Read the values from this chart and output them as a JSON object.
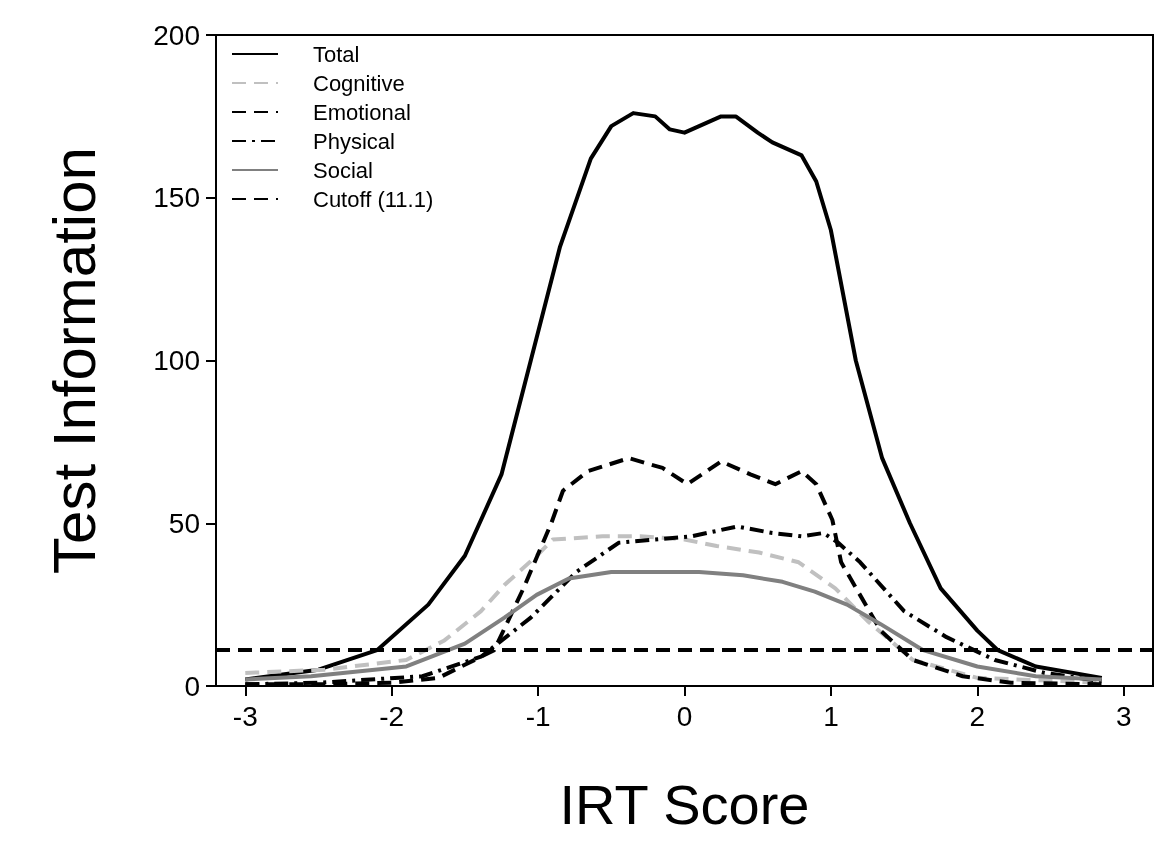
{
  "chart_data": {
    "type": "line",
    "xlabel": "IRT Score",
    "ylabel": "Test Information",
    "xlim": [
      -3.2,
      3.2
    ],
    "xticks": [
      -3,
      -2,
      -1,
      0,
      1,
      2,
      3
    ],
    "ylim": [
      0,
      200
    ],
    "yticks": [
      0,
      50,
      100,
      150,
      200
    ],
    "grid": false,
    "legend": "top left",
    "marker": "none",
    "series": [
      {
        "name": "Total",
        "color": "#000000",
        "line_style": "solid",
        "x": [
          -3,
          -2.5,
          -2.1,
          -1.75,
          -1.5,
          -1.25,
          -1.05,
          -0.85,
          -0.64,
          -0.5,
          -0.35,
          -0.2,
          -0.1,
          0,
          0.1,
          0.25,
          0.35,
          0.5,
          0.6,
          0.8,
          0.9,
          1,
          1.17,
          1.35,
          1.54,
          1.75,
          2,
          2.14,
          2.4,
          2.85
        ],
        "values": [
          2,
          5,
          11,
          25,
          40,
          65,
          100,
          135,
          162,
          172,
          176,
          175,
          171,
          170,
          172,
          175,
          175,
          170,
          167,
          163,
          155,
          140,
          100,
          70,
          50,
          30,
          17,
          11,
          6,
          2.5
        ]
      },
      {
        "name": "Cognitive",
        "color": "#c0c0c0",
        "line_style": "dashed",
        "x": [
          -3,
          -2.46,
          -1.9,
          -1.64,
          -1.39,
          -1.23,
          -1.01,
          -0.9,
          -0.56,
          -0.3,
          0,
          0.22,
          0.51,
          0.78,
          1.03,
          1.25,
          1.56,
          2,
          2.85
        ],
        "values": [
          4,
          5,
          8,
          14,
          23,
          31,
          40,
          45,
          46,
          46,
          45,
          43,
          41,
          38,
          30,
          20,
          8,
          2.5,
          1
        ]
      },
      {
        "name": "Emotional",
        "color": "#000000",
        "line_style": "dashed",
        "x": [
          -3,
          -2.5,
          -2,
          -1.68,
          -1.3,
          -1.1,
          -0.91,
          -0.83,
          -0.66,
          -0.38,
          -0.15,
          0.02,
          0.25,
          0.45,
          0.62,
          0.8,
          0.9,
          1.01,
          1.07,
          1.34,
          1.56,
          1.9,
          2.23,
          2.85
        ],
        "values": [
          0.5,
          0.5,
          1,
          2.5,
          11,
          30,
          50,
          60,
          66,
          70,
          67,
          62,
          69,
          65,
          62,
          66,
          62,
          51,
          38,
          17,
          8,
          3,
          1,
          0.5
        ]
      },
      {
        "name": "Physical",
        "color": "#000000",
        "line_style": "dashdot",
        "x": [
          -3,
          -2.5,
          -1.79,
          -1.39,
          -1.05,
          -0.74,
          -0.45,
          0.05,
          0.36,
          0.6,
          0.8,
          0.95,
          1.05,
          1.2,
          1.5,
          1.79,
          2.12,
          2.46,
          2.85
        ],
        "values": [
          0.5,
          1,
          3,
          9,
          21,
          35,
          44,
          46,
          49,
          47,
          46,
          47,
          44,
          38,
          23,
          15,
          8,
          4,
          1.5
        ]
      },
      {
        "name": "Social",
        "color": "#808080",
        "line_style": "solid",
        "x": [
          -3,
          -2.55,
          -1.9,
          -1.5,
          -1.23,
          -1.01,
          -0.79,
          -0.5,
          -0.23,
          0.1,
          0.4,
          0.67,
          0.89,
          1.11,
          1.34,
          1.63,
          2,
          2.4,
          2.85
        ],
        "values": [
          2,
          3,
          6,
          13,
          21,
          28,
          33,
          35,
          35,
          35,
          34,
          32,
          29,
          25,
          19,
          11,
          6,
          3,
          2
        ]
      }
    ],
    "ref_lines": [
      {
        "axis": "y",
        "value": 11.1,
        "label": "Cutoff (11.1)",
        "color": "#000000",
        "line_style": "dashed"
      }
    ]
  }
}
